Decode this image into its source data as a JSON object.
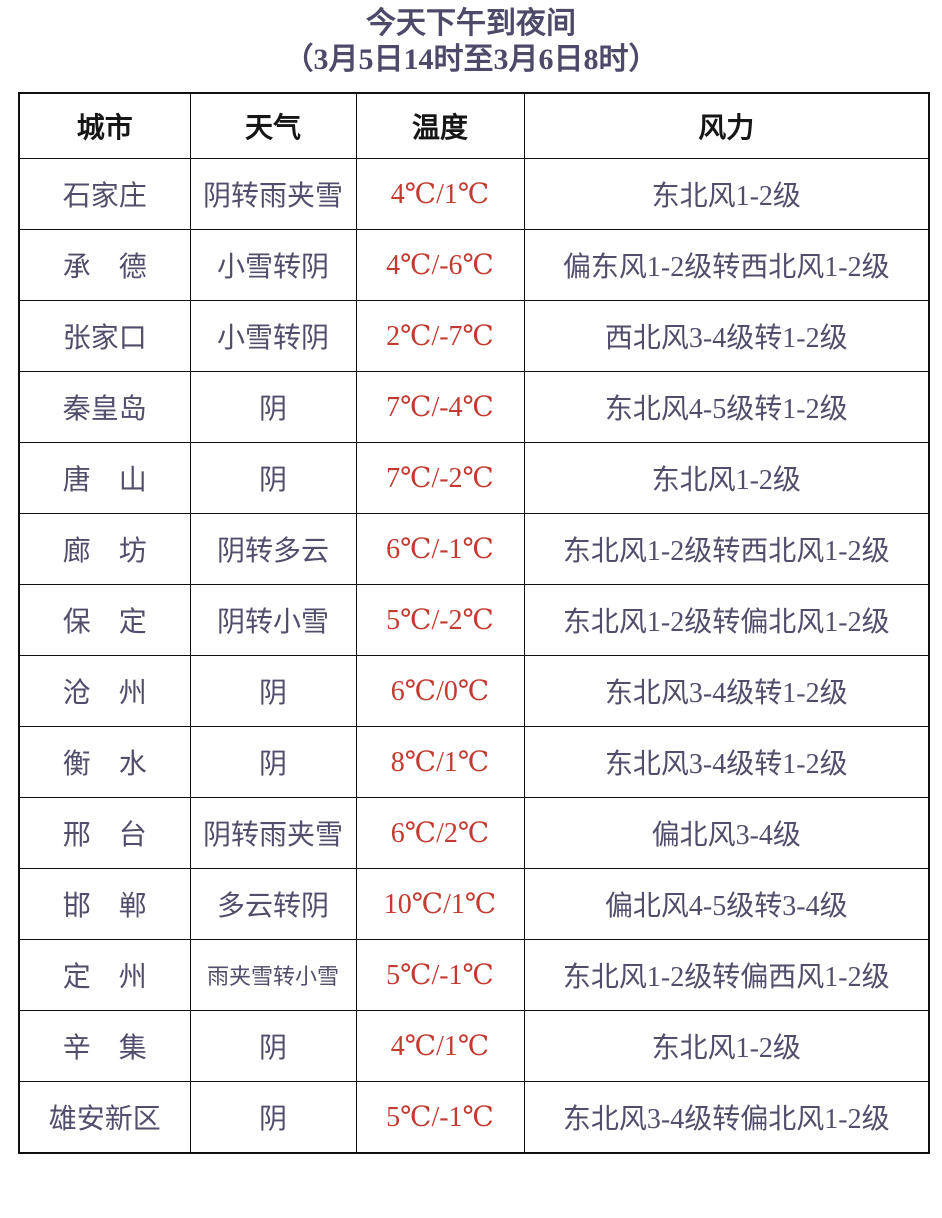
{
  "title": {
    "line1": "今天下午到夜间",
    "line2": "（3月5日14时至3月6日8时）"
  },
  "table": {
    "headers": [
      "城市",
      "天气",
      "温度",
      "风力"
    ],
    "rows": [
      {
        "city": "石家庄",
        "weather": "阴转雨夹雪",
        "weather_small": false,
        "temp": "4℃/1℃",
        "wind": "东北风1-2级"
      },
      {
        "city": "承　德",
        "weather": "小雪转阴",
        "weather_small": false,
        "temp": "4℃/-6℃",
        "wind": "偏东风1-2级转西北风1-2级"
      },
      {
        "city": "张家口",
        "weather": "小雪转阴",
        "weather_small": false,
        "temp": "2℃/-7℃",
        "wind": "西北风3-4级转1-2级"
      },
      {
        "city": "秦皇岛",
        "weather": "阴",
        "weather_small": false,
        "temp": "7℃/-4℃",
        "wind": "东北风4-5级转1-2级"
      },
      {
        "city": "唐　山",
        "weather": "阴",
        "weather_small": false,
        "temp": "7℃/-2℃",
        "wind": "东北风1-2级"
      },
      {
        "city": "廊　坊",
        "weather": "阴转多云",
        "weather_small": false,
        "temp": "6℃/-1℃",
        "wind": "东北风1-2级转西北风1-2级"
      },
      {
        "city": "保　定",
        "weather": "阴转小雪",
        "weather_small": false,
        "temp": "5℃/-2℃",
        "wind": "东北风1-2级转偏北风1-2级"
      },
      {
        "city": "沧　州",
        "weather": "阴",
        "weather_small": false,
        "temp": "6℃/0℃",
        "wind": "东北风3-4级转1-2级"
      },
      {
        "city": "衡　水",
        "weather": "阴",
        "weather_small": false,
        "temp": "8℃/1℃",
        "wind": "东北风3-4级转1-2级"
      },
      {
        "city": "邢　台",
        "weather": "阴转雨夹雪",
        "weather_small": false,
        "temp": "6℃/2℃",
        "wind": "偏北风3-4级"
      },
      {
        "city": "邯　郸",
        "weather": "多云转阴",
        "weather_small": false,
        "temp": "10℃/1℃",
        "wind": "偏北风4-5级转3-4级"
      },
      {
        "city": "定　州",
        "weather": "雨夹雪转小雪",
        "weather_small": true,
        "temp": "5℃/-1℃",
        "wind": "东北风1-2级转偏西风1-2级"
      },
      {
        "city": "辛　集",
        "weather": "阴",
        "weather_small": false,
        "temp": "4℃/1℃",
        "wind": "东北风1-2级"
      },
      {
        "city": "雄安新区",
        "weather": "阴",
        "weather_small": false,
        "temp": "5℃/-1℃",
        "wind": "东北风3-4级转偏北风1-2级"
      }
    ]
  },
  "colors": {
    "body_text": "#514e6b",
    "header_text": "#161616",
    "temp_text": "#c23a30",
    "title_text": "#4c4969",
    "border": "#101010",
    "background": "#ffffff"
  }
}
